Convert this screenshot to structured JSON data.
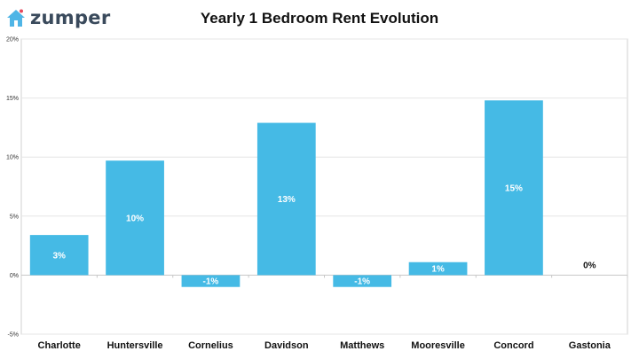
{
  "brand": {
    "name": "zumper",
    "logo_icon": "house-icon",
    "icon_color": "#4fb5e6",
    "dot_color": "#e5485c",
    "text_color": "#3a4a5c"
  },
  "colors": {
    "bar": "#45bae5",
    "grid": "#e6e6e6",
    "axis": "#d0d0d0"
  },
  "chart_data": {
    "type": "bar",
    "title": "Yearly 1 Bedroom Rent Evolution",
    "xlabel": "",
    "ylabel": "",
    "ylim": [
      -5,
      20
    ],
    "yticks": [
      -5,
      0,
      5,
      10,
      15,
      20
    ],
    "ytick_labels": [
      "-5%",
      "0%",
      "5%",
      "10%",
      "15%",
      "20%"
    ],
    "grid": true,
    "legend": "none",
    "categories": [
      "Charlotte",
      "Huntersville",
      "Cornelius",
      "Davidson",
      "Matthews",
      "Mooresville",
      "Concord",
      "Gastonia"
    ],
    "values": [
      3.4,
      9.7,
      -1.0,
      12.9,
      -1.0,
      1.1,
      14.8,
      0
    ],
    "data_labels": [
      "3%",
      "10%",
      "-1%",
      "13%",
      "-1%",
      "1%",
      "15%",
      "0%"
    ]
  }
}
